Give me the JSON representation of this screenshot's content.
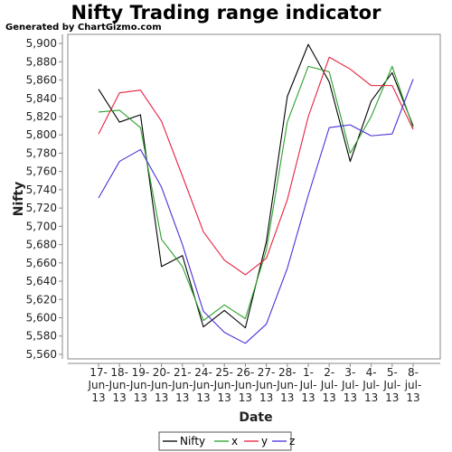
{
  "title": "Nifty Trading range indicator",
  "subtitle": "Generated by ChartGizmo.com",
  "chart_data": {
    "type": "line",
    "xlabel": "Date",
    "ylabel": "Nifty",
    "ylim": [
      5555,
      5910
    ],
    "yticks": [
      5560,
      5580,
      5600,
      5620,
      5640,
      5660,
      5680,
      5700,
      5720,
      5740,
      5760,
      5780,
      5800,
      5820,
      5840,
      5860,
      5880,
      5900
    ],
    "ytick_labels": [
      "5,560",
      "5,580",
      "5,600",
      "5,620",
      "5,640",
      "5,660",
      "5,680",
      "5,700",
      "5,720",
      "5,740",
      "5,760",
      "5,780",
      "5,800",
      "5,820",
      "5,840",
      "5,860",
      "5,880",
      "5,900"
    ],
    "categories": [
      "17-Jun-13",
      "18-Jun-13",
      "19-Jun-13",
      "20-Jun-13",
      "21-Jun-13",
      "24-Jun-13",
      "25-Jun-13",
      "26-Jun-13",
      "27-Jun-13",
      "28-Jun-13",
      "1-Jul-13",
      "2-Jul-13",
      "3-Jul-13",
      "4-Jul-13",
      "5-Jul-13",
      "8-jul-13"
    ],
    "category_lines": [
      [
        "17-",
        "Jun-",
        "13"
      ],
      [
        "18-",
        "Jun-",
        "13"
      ],
      [
        "19-",
        "Jun-",
        "13"
      ],
      [
        "20-",
        "Jun-",
        "13"
      ],
      [
        "21-",
        "Jun-",
        "13"
      ],
      [
        "24-",
        "Jun-",
        "13"
      ],
      [
        "25-",
        "Jun-",
        "13"
      ],
      [
        "26-",
        "Jun-",
        "13"
      ],
      [
        "27-",
        "Jun-",
        "13"
      ],
      [
        "28-",
        "Jun-",
        "13"
      ],
      [
        "1-",
        "Jul-",
        "13"
      ],
      [
        "2-",
        "Jul-",
        "13"
      ],
      [
        "3-",
        "Jul-",
        "13"
      ],
      [
        "4-",
        "Jul-",
        "13"
      ],
      [
        "5-",
        "Jul-",
        "13"
      ],
      [
        "8-",
        "jul-",
        "13"
      ]
    ],
    "series": [
      {
        "name": "Nifty",
        "color": "#000000",
        "values": [
          5850,
          5814,
          5822,
          5656,
          5668,
          5590,
          5608,
          5589,
          5683,
          5842,
          5899,
          5858,
          5771,
          5837,
          5868,
          5810
        ]
      },
      {
        "name": "x",
        "color": "#2ca02c",
        "values": [
          5825,
          5827,
          5808,
          5686,
          5656,
          5597,
          5614,
          5599,
          5674,
          5814,
          5875,
          5869,
          5780,
          5820,
          5875,
          5808
        ]
      },
      {
        "name": "y",
        "color": "#e8213f",
        "values": [
          5801,
          5846,
          5849,
          5815,
          5755,
          5694,
          5663,
          5647,
          5665,
          5729,
          5820,
          5885,
          5872,
          5854,
          5854,
          5806
        ]
      },
      {
        "name": "z",
        "color": "#4b2fd6",
        "values": [
          5731,
          5771,
          5784,
          5743,
          5680,
          5607,
          5584,
          5572,
          5593,
          5654,
          5734,
          5808,
          5811,
          5799,
          5801,
          5861
        ]
      }
    ],
    "grid": false,
    "legend_position": "bottom"
  }
}
